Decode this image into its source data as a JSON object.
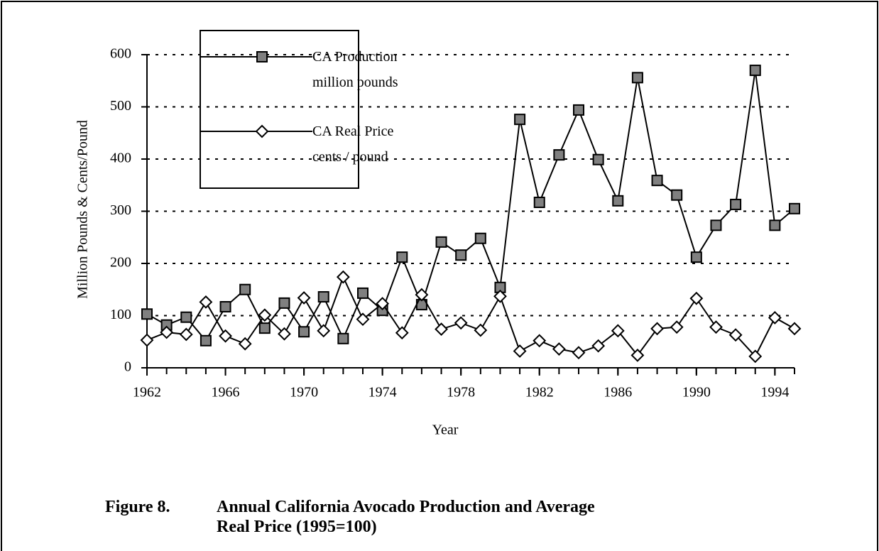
{
  "chart_data": {
    "type": "line",
    "y_label": "Million Pounds & Cents/Pound",
    "x_label": "Year",
    "caption_label": "Figure 8.",
    "caption": "Annual California Avocado Production and Average Real Price (1995=100)",
    "x": [
      1962,
      1963,
      1964,
      1965,
      1966,
      1967,
      1968,
      1969,
      1970,
      1971,
      1972,
      1973,
      1974,
      1975,
      1976,
      1977,
      1978,
      1979,
      1980,
      1981,
      1982,
      1983,
      1984,
      1985,
      1986,
      1987,
      1988,
      1989,
      1990,
      1991,
      1992,
      1993,
      1994,
      1995
    ],
    "series": [
      {
        "name": "CA Production million pounds",
        "color": "#808080",
        "marker": "square",
        "values": [
          103,
          82,
          97,
          52,
          117,
          150,
          76,
          124,
          69,
          136,
          56,
          143,
          110,
          212,
          121,
          241,
          216,
          248,
          154,
          476,
          317,
          408,
          494,
          399,
          320,
          556,
          359,
          331,
          212,
          273,
          313,
          570,
          273,
          305
        ]
      },
      {
        "name": "CA Real Price cents / pound",
        "color": "#ffffff",
        "marker": "diamond",
        "values": [
          53,
          68,
          64,
          126,
          61,
          46,
          101,
          65,
          134,
          71,
          174,
          93,
          123,
          67,
          140,
          74,
          86,
          72,
          137,
          32,
          52,
          36,
          29,
          42,
          71,
          24,
          75,
          78,
          133,
          78,
          63,
          22,
          96,
          75
        ]
      }
    ],
    "xlim": [
      1962,
      1995
    ],
    "xticks": [
      1962,
      1966,
      1970,
      1974,
      1978,
      1982,
      1986,
      1990,
      1994
    ],
    "ylim": [
      0,
      600
    ],
    "yticks": [
      0,
      100,
      200,
      300,
      400,
      500,
      600
    ],
    "grid": true
  }
}
